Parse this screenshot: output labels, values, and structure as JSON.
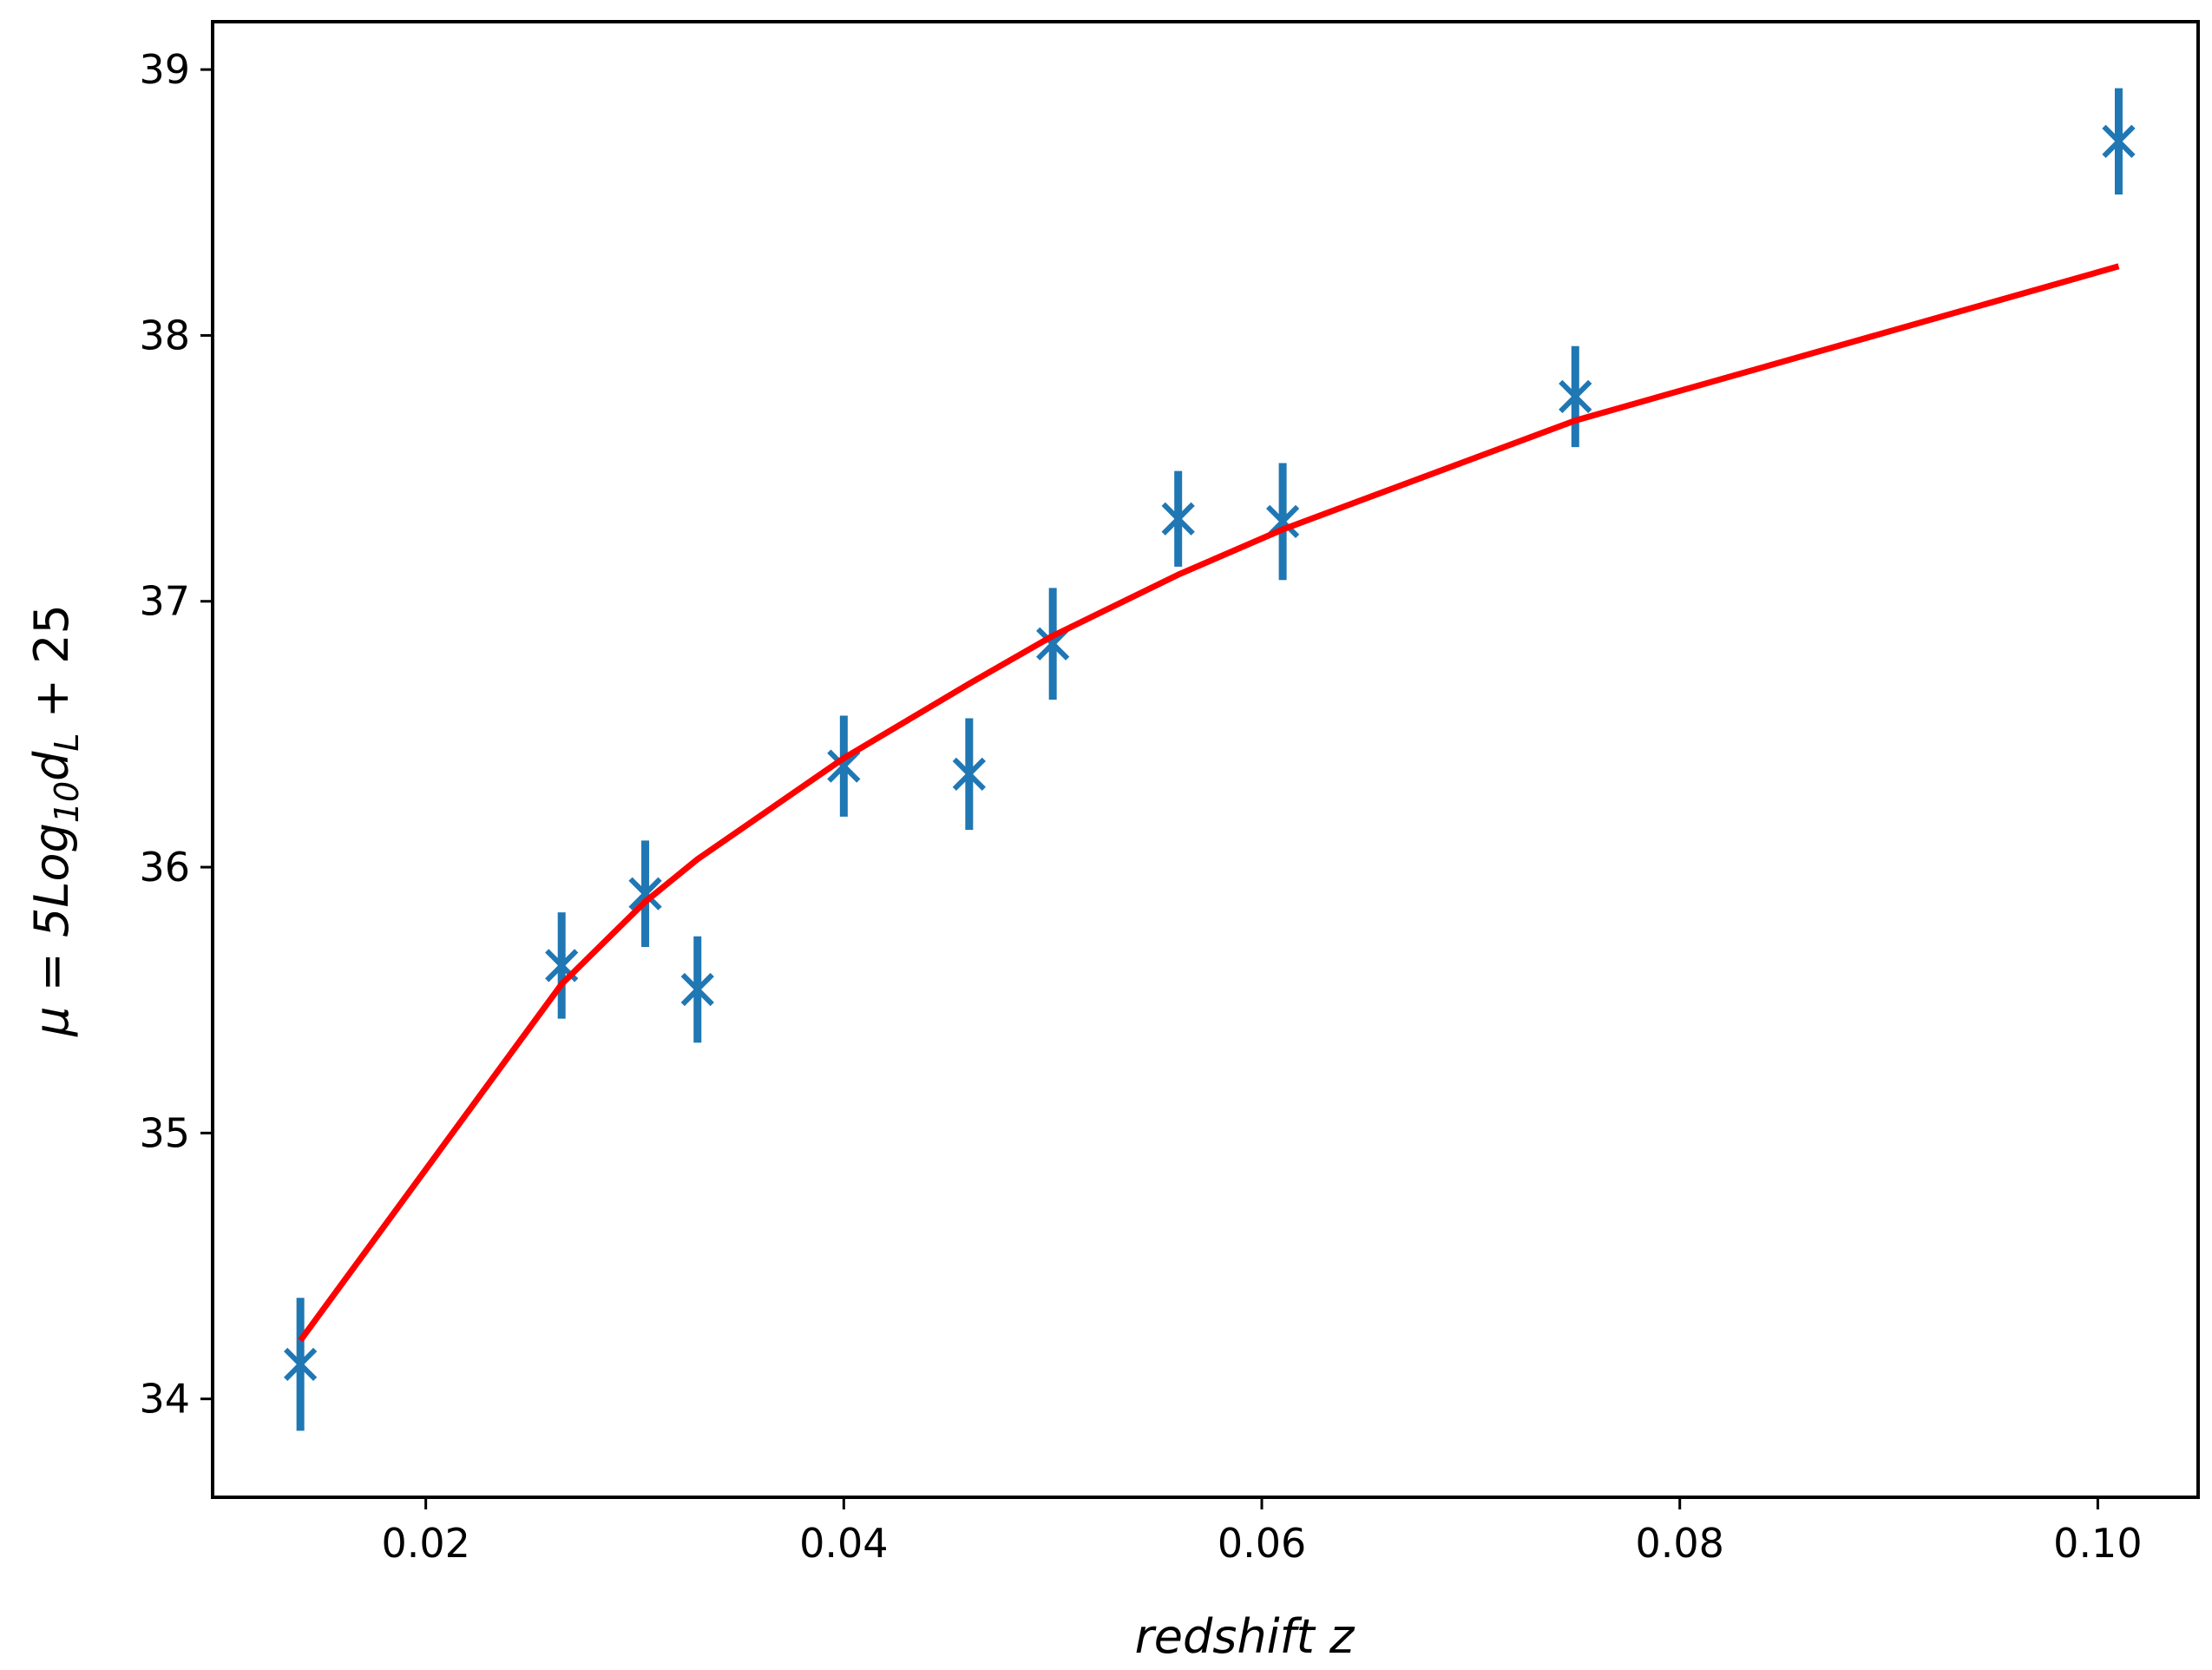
{
  "chart_data": {
    "type": "scatter",
    "title": "",
    "xlabel": "redshift z",
    "ylabel": "μ = 5Log₁₀d_L + 25",
    "ylabel_parts": {
      "base": "μ = 5Log",
      "sub1": "10",
      "mid": "d",
      "sub2": "L",
      "tail": " + 25"
    },
    "xlim": [
      0.0098,
      0.1048
    ],
    "ylim": [
      33.63,
      39.18
    ],
    "xticks": [
      0.02,
      0.04,
      0.06,
      0.08,
      0.1
    ],
    "xtick_labels": [
      "0.02",
      "0.04",
      "0.06",
      "0.08",
      "0.10"
    ],
    "yticks": [
      34,
      35,
      36,
      37,
      38,
      39
    ],
    "ytick_labels": [
      "34",
      "35",
      "36",
      "37",
      "38",
      "39"
    ],
    "grid": false,
    "series": [
      {
        "type": "errorbar",
        "marker": "x",
        "color": "#1f77b4",
        "points": [
          {
            "x": 0.014,
            "y": 34.13,
            "err": 0.25
          },
          {
            "x": 0.0265,
            "y": 35.63,
            "err": 0.2
          },
          {
            "x": 0.0305,
            "y": 35.9,
            "err": 0.2
          },
          {
            "x": 0.033,
            "y": 35.54,
            "err": 0.2
          },
          {
            "x": 0.04,
            "y": 36.38,
            "err": 0.19
          },
          {
            "x": 0.046,
            "y": 36.35,
            "err": 0.21
          },
          {
            "x": 0.05,
            "y": 36.84,
            "err": 0.21
          },
          {
            "x": 0.056,
            "y": 37.31,
            "err": 0.18
          },
          {
            "x": 0.061,
            "y": 37.3,
            "err": 0.22
          },
          {
            "x": 0.075,
            "y": 37.77,
            "err": 0.19
          },
          {
            "x": 0.101,
            "y": 38.73,
            "err": 0.2
          }
        ]
      },
      {
        "type": "line",
        "color": "#ff0000",
        "x": [
          0.014,
          0.0265,
          0.0305,
          0.033,
          0.04,
          0.046,
          0.05,
          0.056,
          0.061,
          0.075,
          0.101
        ],
        "y": [
          34.22,
          35.56,
          35.87,
          36.03,
          36.41,
          36.69,
          36.87,
          37.1,
          37.27,
          37.68,
          38.26
        ]
      }
    ]
  }
}
